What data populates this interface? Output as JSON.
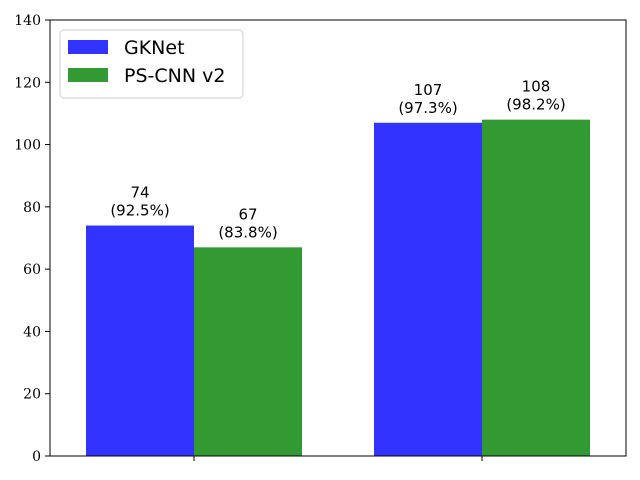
{
  "chart_data": {
    "type": "bar",
    "title": "",
    "xlabel": "",
    "ylabel": "",
    "ylim": [
      0,
      140
    ],
    "yticks": [
      0,
      20,
      40,
      60,
      80,
      100,
      120,
      140
    ],
    "categories": [
      "",
      ""
    ],
    "grid": false,
    "legend_placement": "top-left",
    "series": [
      {
        "name": "GKNet",
        "color": "#3333ff",
        "values": [
          74,
          107
        ],
        "labels": [
          [
            "74",
            "(92.5%)"
          ],
          [
            "107",
            "(97.3%)"
          ]
        ]
      },
      {
        "name": "PS-CNN v2",
        "color": "#339933",
        "values": [
          67,
          108
        ],
        "labels": [
          [
            "67",
            "(83.8%)"
          ],
          [
            "108",
            "(98.2%)"
          ]
        ]
      }
    ]
  }
}
